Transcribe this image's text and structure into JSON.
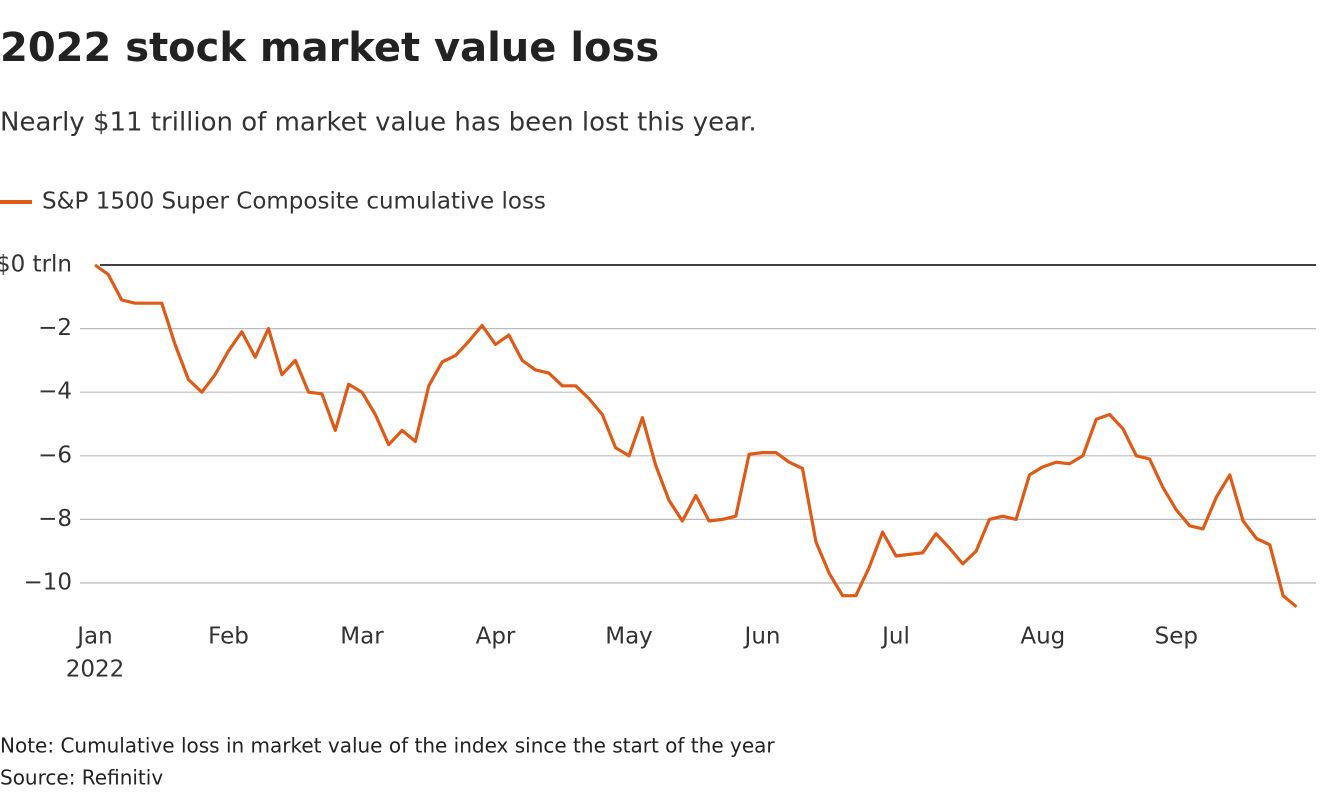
{
  "chart_data": {
    "type": "line",
    "title": "2022 stock market value loss",
    "subtitle": "Nearly $11 trillion of market value has been lost this year.",
    "note": "Note: Cumulative loss in market value of the index since the start of the year",
    "source": "Source: Refinitiv",
    "year_label": "2022",
    "categories": [
      "Jan",
      null,
      null,
      null,
      null,
      null,
      null,
      null,
      null,
      null,
      "Feb",
      null,
      null,
      null,
      null,
      null,
      null,
      null,
      null,
      null,
      "Mar",
      null,
      null,
      null,
      null,
      null,
      null,
      null,
      null,
      null,
      "Apr",
      null,
      null,
      null,
      null,
      null,
      null,
      null,
      null,
      null,
      "May",
      null,
      null,
      null,
      null,
      null,
      null,
      null,
      null,
      null,
      "Jun",
      null,
      null,
      null,
      null,
      null,
      null,
      null,
      null,
      null,
      "Jul",
      null,
      null,
      null,
      null,
      null,
      null,
      null,
      null,
      null,
      null,
      "Aug",
      null,
      null,
      null,
      null,
      null,
      null,
      null,
      null,
      null,
      "Sep",
      null,
      null,
      null,
      null,
      null,
      null,
      null,
      null,
      null
    ],
    "series": [
      {
        "name": "S&P 1500 Super Composite cumulative loss",
        "color": "#dd5a17",
        "values": [
          0,
          -0.3,
          -1.1,
          -1.2,
          -1.2,
          -1.2,
          -2.5,
          -3.6,
          -4.0,
          -3.45,
          -2.7,
          -2.1,
          -2.9,
          -2.0,
          -3.45,
          -3.0,
          -4.0,
          -4.05,
          -5.2,
          -3.75,
          -4.0,
          -4.7,
          -5.65,
          -5.2,
          -5.55,
          -3.8,
          -3.05,
          -2.85,
          -2.4,
          -1.9,
          -2.5,
          -2.2,
          -3.0,
          -3.3,
          -3.4,
          -3.8,
          -3.8,
          -4.2,
          -4.7,
          -5.75,
          -6.0,
          -4.8,
          -6.3,
          -7.4,
          -8.05,
          -7.25,
          -8.05,
          -8.0,
          -7.9,
          -5.95,
          -5.9,
          -5.9,
          -6.2,
          -6.4,
          -8.7,
          -9.7,
          -10.4,
          -10.4,
          -9.5,
          -8.4,
          -9.15,
          -9.1,
          -9.05,
          -8.45,
          -8.9,
          -9.4,
          -9.0,
          -8.0,
          -7.9,
          -8.0,
          -6.6,
          -6.35,
          -6.2,
          -6.25,
          -6.0,
          -4.85,
          -4.7,
          -5.15,
          -6.0,
          -6.1,
          -7.0,
          -7.7,
          -8.2,
          -8.3,
          -7.3,
          -6.6,
          -8.05,
          -8.6,
          -8.8,
          -10.4,
          -10.75
        ]
      }
    ],
    "ylim": [
      -11,
      0
    ],
    "yticks": [
      {
        "value": 0,
        "label": "$0 trln"
      },
      {
        "value": -2,
        "label": "−2"
      },
      {
        "value": -4,
        "label": "−4"
      },
      {
        "value": -6,
        "label": "−6"
      },
      {
        "value": -8,
        "label": "−8"
      },
      {
        "value": -10,
        "label": "−10"
      }
    ],
    "grid": true
  }
}
